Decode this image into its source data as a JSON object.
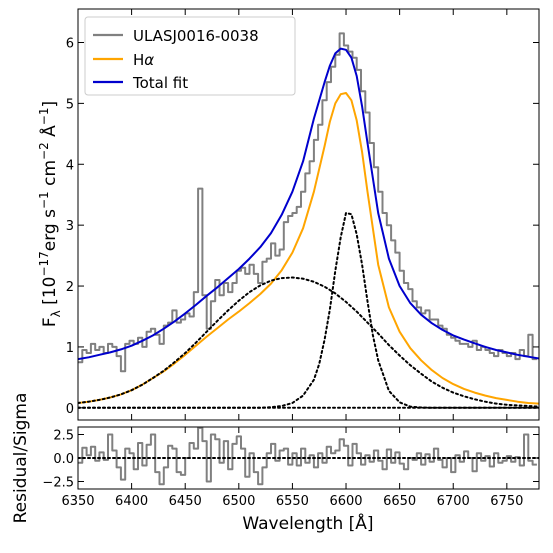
{
  "chart_data": [
    {
      "type": "line",
      "xlabel": "Wavelength [Å]",
      "ylabel": "F",
      "ylabel_sub": "λ",
      "ylabel_units_parts": [
        "[10",
        "−17",
        "erg s",
        "−1",
        "cm",
        "−2",
        "Å",
        "−1",
        "]"
      ],
      "xlim": [
        6350,
        6780
      ],
      "ylim": [
        -0.2,
        6.55
      ],
      "x_ticks": [
        6350,
        6400,
        6450,
        6500,
        6550,
        6600,
        6650,
        6700,
        6750
      ],
      "y_ticks": [
        0,
        1,
        2,
        3,
        4,
        5,
        6
      ],
      "legend": {
        "placement": "top-left",
        "entries": [
          {
            "label": "ULASJ0016-0038",
            "color": "#808080"
          },
          {
            "label": "Hα",
            "label_parts": [
              "H",
              "α"
            ],
            "color": "#ffa500"
          },
          {
            "label": "Total fit",
            "color": "#0000cd"
          }
        ]
      },
      "series": [
        {
          "name": "ULASJ0016-0038",
          "color": "#808080",
          "style": "steps",
          "x": [
            6352,
            6356,
            6360,
            6364,
            6368,
            6372,
            6376,
            6380,
            6384,
            6388,
            6392,
            6396,
            6400,
            6404,
            6408,
            6412,
            6416,
            6420,
            6424,
            6428,
            6432,
            6436,
            6440,
            6444,
            6448,
            6452,
            6456,
            6460,
            6464,
            6468,
            6472,
            6476,
            6480,
            6484,
            6488,
            6492,
            6496,
            6500,
            6504,
            6508,
            6512,
            6516,
            6520,
            6524,
            6528,
            6532,
            6536,
            6540,
            6544,
            6548,
            6552,
            6556,
            6560,
            6564,
            6568,
            6572,
            6576,
            6580,
            6584,
            6588,
            6592,
            6596,
            6600,
            6604,
            6608,
            6612,
            6616,
            6620,
            6624,
            6628,
            6632,
            6636,
            6640,
            6644,
            6648,
            6652,
            6656,
            6660,
            6664,
            6668,
            6672,
            6676,
            6680,
            6684,
            6688,
            6692,
            6696,
            6700,
            6704,
            6708,
            6712,
            6716,
            6720,
            6724,
            6728,
            6732,
            6736,
            6740,
            6744,
            6748,
            6752,
            6756,
            6760,
            6764,
            6768,
            6772,
            6776
          ],
          "y": [
            0.75,
            0.95,
            0.9,
            1.05,
            0.95,
            1.0,
            0.9,
            1.05,
            1.0,
            0.85,
            0.6,
            1.05,
            1.1,
            1.05,
            1.15,
            1.0,
            1.25,
            1.3,
            1.2,
            1.05,
            1.35,
            1.4,
            1.6,
            1.4,
            1.45,
            1.55,
            1.5,
            1.9,
            3.6,
            1.85,
            1.3,
            1.75,
            2.1,
            1.85,
            2.05,
            1.9,
            2.05,
            2.25,
            2.3,
            2.2,
            2.35,
            2.2,
            2.05,
            2.4,
            2.45,
            2.7,
            2.5,
            2.6,
            3.05,
            3.15,
            3.2,
            3.3,
            3.55,
            3.85,
            4.05,
            4.4,
            4.65,
            5.05,
            5.35,
            5.6,
            5.8,
            6.15,
            5.95,
            5.85,
            5.75,
            5.55,
            5.2,
            4.85,
            4.35,
            3.95,
            3.55,
            3.2,
            3.0,
            2.75,
            2.55,
            2.25,
            2.05,
            1.95,
            1.75,
            1.65,
            1.55,
            1.6,
            1.45,
            1.45,
            1.35,
            1.3,
            1.2,
            1.15,
            1.1,
            1.05,
            1.05,
            1.0,
            1.1,
            0.95,
            1.0,
            0.95,
            0.9,
            0.85,
            0.95,
            0.9,
            0.85,
            0.9,
            0.8,
            0.95,
            0.85,
            1.2,
            0.8
          ]
        },
        {
          "name": "Hα",
          "color": "#ffa500",
          "style": "line",
          "x": [
            6350,
            6360,
            6370,
            6380,
            6390,
            6400,
            6410,
            6420,
            6430,
            6440,
            6450,
            6460,
            6470,
            6480,
            6490,
            6500,
            6510,
            6520,
            6530,
            6540,
            6550,
            6560,
            6570,
            6580,
            6585,
            6590,
            6595,
            6600,
            6605,
            6610,
            6615,
            6620,
            6630,
            6640,
            6650,
            6660,
            6670,
            6680,
            6690,
            6700,
            6710,
            6720,
            6730,
            6740,
            6750,
            6760,
            6770,
            6780
          ],
          "y": [
            0.08,
            0.1,
            0.13,
            0.17,
            0.22,
            0.29,
            0.38,
            0.49,
            0.6,
            0.73,
            0.87,
            1.02,
            1.17,
            1.31,
            1.45,
            1.58,
            1.72,
            1.87,
            2.04,
            2.26,
            2.55,
            2.95,
            3.55,
            4.3,
            4.7,
            5.0,
            5.15,
            5.17,
            5.05,
            4.72,
            4.2,
            3.55,
            2.35,
            1.65,
            1.25,
            0.98,
            0.78,
            0.62,
            0.49,
            0.39,
            0.31,
            0.25,
            0.2,
            0.16,
            0.13,
            0.1,
            0.08,
            0.07
          ]
        },
        {
          "name": "Total fit",
          "color": "#0000cd",
          "style": "line",
          "x": [
            6350,
            6360,
            6370,
            6380,
            6390,
            6400,
            6410,
            6420,
            6430,
            6440,
            6450,
            6460,
            6470,
            6480,
            6490,
            6500,
            6510,
            6520,
            6530,
            6540,
            6550,
            6560,
            6570,
            6580,
            6585,
            6590,
            6595,
            6600,
            6605,
            6610,
            6615,
            6620,
            6630,
            6640,
            6650,
            6660,
            6670,
            6680,
            6690,
            6700,
            6710,
            6720,
            6730,
            6740,
            6750,
            6760,
            6770,
            6780
          ],
          "y": [
            0.8,
            0.83,
            0.87,
            0.91,
            0.96,
            1.02,
            1.1,
            1.19,
            1.3,
            1.42,
            1.55,
            1.69,
            1.84,
            1.98,
            2.13,
            2.28,
            2.45,
            2.64,
            2.87,
            3.17,
            3.55,
            4.05,
            4.75,
            5.35,
            5.62,
            5.82,
            5.9,
            5.88,
            5.75,
            5.45,
            4.95,
            4.35,
            3.2,
            2.45,
            2.0,
            1.72,
            1.53,
            1.39,
            1.28,
            1.19,
            1.12,
            1.06,
            1.0,
            0.95,
            0.91,
            0.87,
            0.84,
            0.81
          ]
        },
        {
          "name": "",
          "color": "#000000",
          "style": "dotted",
          "x": [
            6350,
            6360,
            6370,
            6380,
            6390,
            6400,
            6410,
            6420,
            6430,
            6440,
            6450,
            6460,
            6470,
            6480,
            6490,
            6500,
            6510,
            6520,
            6530,
            6540,
            6550,
            6560,
            6570,
            6580,
            6590,
            6600,
            6610,
            6620,
            6630,
            6640,
            6650,
            6660,
            6670,
            6680,
            6690,
            6700,
            6710,
            6720,
            6730,
            6740,
            6750,
            6760,
            6770,
            6780
          ],
          "y": [
            0.08,
            0.1,
            0.13,
            0.17,
            0.22,
            0.29,
            0.38,
            0.49,
            0.61,
            0.75,
            0.9,
            1.07,
            1.25,
            1.43,
            1.6,
            1.76,
            1.9,
            2.01,
            2.09,
            2.13,
            2.14,
            2.12,
            2.07,
            1.99,
            1.88,
            1.74,
            1.58,
            1.4,
            1.22,
            1.03,
            0.86,
            0.7,
            0.56,
            0.43,
            0.33,
            0.25,
            0.19,
            0.14,
            0.1,
            0.07,
            0.05,
            0.04,
            0.03,
            0.02
          ]
        },
        {
          "name": "",
          "color": "#000000",
          "style": "dotted",
          "x": [
            6350,
            6520,
            6530,
            6540,
            6550,
            6560,
            6570,
            6575,
            6580,
            6585,
            6590,
            6595,
            6600,
            6605,
            6610,
            6615,
            6620,
            6625,
            6630,
            6640,
            6650,
            6660,
            6670,
            6680,
            6780
          ],
          "y": [
            0,
            0,
            0.01,
            0.03,
            0.08,
            0.2,
            0.46,
            0.72,
            1.12,
            1.62,
            2.25,
            2.8,
            3.2,
            3.18,
            2.85,
            2.35,
            1.75,
            1.2,
            0.78,
            0.28,
            0.09,
            0.02,
            0.005,
            0,
            0
          ]
        },
        {
          "name": "",
          "color": "#000000",
          "style": "dotted",
          "x": [
            6350,
            6780
          ],
          "y": [
            0,
            0
          ]
        }
      ]
    },
    {
      "type": "line",
      "ylabel": "Residual/Sigma",
      "xlim": [
        6350,
        6780
      ],
      "ylim": [
        -3.3,
        3.3
      ],
      "y_ticks": [
        -2.5,
        0.0,
        2.5
      ],
      "y_tick_labels": [
        "−2.5",
        "0.0",
        "2.5"
      ],
      "series": [
        {
          "name": "",
          "color": "#808080",
          "style": "steps",
          "x": [
            6352,
            6356,
            6360,
            6364,
            6368,
            6372,
            6376,
            6380,
            6384,
            6388,
            6392,
            6396,
            6400,
            6404,
            6408,
            6412,
            6416,
            6420,
            6424,
            6428,
            6432,
            6436,
            6440,
            6444,
            6448,
            6452,
            6456,
            6460,
            6464,
            6468,
            6472,
            6476,
            6480,
            6484,
            6488,
            6492,
            6496,
            6500,
            6504,
            6508,
            6512,
            6516,
            6520,
            6524,
            6528,
            6532,
            6536,
            6540,
            6544,
            6548,
            6552,
            6556,
            6560,
            6564,
            6568,
            6572,
            6576,
            6580,
            6584,
            6588,
            6592,
            6596,
            6600,
            6604,
            6608,
            6612,
            6616,
            6620,
            6624,
            6628,
            6632,
            6636,
            6640,
            6644,
            6648,
            6652,
            6656,
            6660,
            6664,
            6668,
            6672,
            6676,
            6680,
            6684,
            6688,
            6692,
            6696,
            6700,
            6704,
            6708,
            6712,
            6716,
            6720,
            6724,
            6728,
            6732,
            6736,
            6740,
            6744,
            6748,
            6752,
            6756,
            6760,
            6764,
            6768,
            6772,
            6776
          ],
          "y": [
            -0.5,
            1.1,
            0.3,
            1.2,
            -0.3,
            0.6,
            -0.2,
            2.5,
            0.8,
            -1.0,
            -2.3,
            1.0,
            0.5,
            -1.2,
            1.6,
            -0.8,
            1.4,
            2.5,
            -1.5,
            -2.8,
            -1.0,
            1.3,
            1.0,
            -1.5,
            -1.8,
            0.0,
            1.6,
            1.0,
            3.2,
            1.8,
            -2.5,
            2.5,
            2.0,
            -0.5,
            1.8,
            -1.2,
            1.5,
            2.3,
            1.0,
            -2.0,
            0.5,
            -1.5,
            -2.8,
            -1.0,
            0.5,
            1.5,
            -0.3,
            0.8,
            1.0,
            -0.7,
            0.5,
            -0.8,
            1.0,
            -0.5,
            0.3,
            -1.0,
            0.5,
            -0.5,
            1.2,
            0.5,
            0.8,
            2.0,
            1.3,
            -0.8,
            1.5,
            0.5,
            -0.7,
            0.3,
            -0.4,
            0.8,
            -0.3,
            -1.2,
            0.9,
            -0.5,
            0.6,
            -0.6,
            -1.2,
            0.0,
            -0.2,
            0.5,
            -0.7,
            0.4,
            -0.4,
            1.0,
            -0.2,
            -1.0,
            0.0,
            -1.5,
            0.3,
            -0.4,
            0.7,
            0.0,
            -1.4,
            0.5,
            -0.3,
            0.2,
            -0.9,
            0.5,
            -0.5,
            -0.3,
            0.2,
            -0.4,
            0.1,
            -0.8,
            2.5,
            -0.3,
            -0.7
          ]
        },
        {
          "name": "",
          "color": "#000000",
          "style": "dotted",
          "x": [
            6350,
            6780
          ],
          "y": [
            0,
            0
          ]
        }
      ]
    }
  ]
}
